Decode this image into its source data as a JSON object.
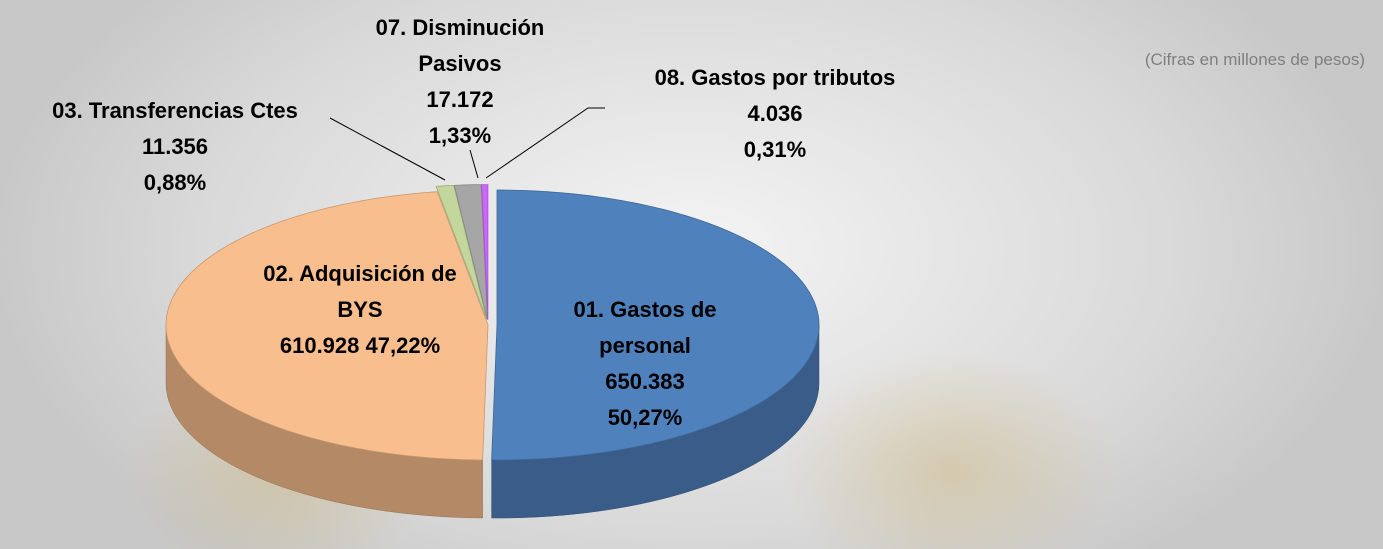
{
  "chart_data": {
    "type": "pie",
    "subtitle": "(Cifras en millones de pesos)",
    "categories": [
      "01. Gastos de personal",
      "02. Adquisición de BYS",
      "03. Transferencias Ctes",
      "07. Disminución Pasivos",
      "08. Gastos por tributos"
    ],
    "values": [
      650383,
      610928,
      11356,
      17172,
      4036
    ],
    "value_labels": [
      "650.383",
      "610.928",
      "11.356",
      "17.172",
      "4.036"
    ],
    "percentages": [
      50.27,
      47.22,
      0.88,
      1.33,
      0.31
    ],
    "percentage_labels": [
      "50,27%",
      "47,22%",
      "0,88%",
      "1,33%",
      "0,31%"
    ],
    "colors": [
      "#4f81bd",
      "#f9be8e",
      "#c3d69b",
      "#a6a6a6",
      "#cc66ff"
    ]
  }
}
